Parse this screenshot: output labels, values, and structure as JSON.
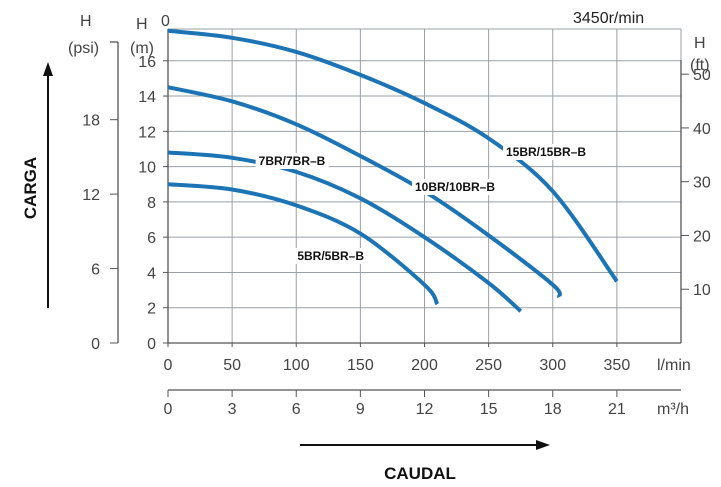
{
  "chart_data": {
    "type": "line",
    "speed_label": "3450r/min",
    "axis_titles": {
      "y": "CARGA",
      "x": "CAUDAL"
    },
    "units": {
      "psi": [
        "H",
        "(psi)"
      ],
      "m": [
        "H",
        "(m)"
      ],
      "ft": [
        "H",
        "(ft)"
      ],
      "lmin": "l/min",
      "m3h": "m³/h"
    },
    "top_zero": "0",
    "x_lmin": {
      "ticks": [
        0,
        50,
        100,
        150,
        200,
        250,
        300,
        350
      ],
      "labels": [
        "0",
        "50",
        "100",
        "150",
        "200",
        "250",
        "300",
        "350"
      ],
      "range": [
        0,
        400
      ]
    },
    "x_m3h": {
      "ticks": [
        0,
        3,
        6,
        9,
        12,
        15,
        18,
        21
      ],
      "labels": [
        "0",
        "3",
        "6",
        "9",
        "12",
        "15",
        "18",
        "21"
      ]
    },
    "y_m": {
      "ticks": [
        0,
        2,
        4,
        6,
        8,
        10,
        12,
        14,
        16
      ],
      "labels": [
        "0",
        "2",
        "4",
        "6",
        "8",
        "10",
        "12",
        "14",
        "16"
      ],
      "range": [
        0,
        17.8
      ]
    },
    "y_psi": {
      "ticks": [
        0,
        6,
        12,
        18
      ],
      "labels": [
        "0",
        "6",
        "12",
        "18"
      ]
    },
    "y_ft": {
      "ticks": [
        10,
        20,
        30,
        40,
        50
      ],
      "labels": [
        "10",
        "20",
        "30",
        "40",
        "50"
      ]
    },
    "grid": true,
    "series": [
      {
        "name": "5BR/5BR–B",
        "x": [
          0,
          50,
          100,
          150,
          200,
          210
        ],
        "y": [
          9.0,
          8.7,
          7.8,
          6.2,
          3.3,
          2.2
        ]
      },
      {
        "name": "7BR/7BR–B",
        "x": [
          0,
          50,
          100,
          150,
          200,
          250,
          275
        ],
        "y": [
          10.8,
          10.5,
          9.7,
          8.2,
          6.0,
          3.4,
          1.8
        ]
      },
      {
        "name": "10BR/10BR–B",
        "x": [
          0,
          50,
          100,
          150,
          200,
          250,
          300,
          305
        ],
        "y": [
          14.5,
          13.7,
          12.4,
          10.6,
          8.6,
          6.1,
          3.3,
          2.6
        ]
      },
      {
        "name": "15BR/15BR–B",
        "x": [
          0,
          50,
          100,
          150,
          200,
          250,
          300,
          350
        ],
        "y": [
          17.7,
          17.3,
          16.5,
          15.2,
          13.6,
          11.6,
          8.6,
          3.5
        ]
      }
    ],
    "colors": {
      "curve": "#1c74b5",
      "grid": "#9aa0a6",
      "axis": "#555555"
    }
  }
}
